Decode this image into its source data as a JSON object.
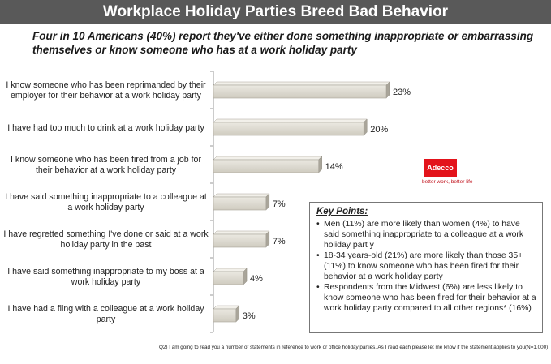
{
  "header": {
    "title": "Workplace Holiday Parties Breed Bad Behavior",
    "subtitle": "Four in 10 Americans (40%) report they've either done something inappropriate or embarrassing themselves or know someone who has at a work holiday party"
  },
  "chart_data": {
    "type": "bar",
    "orientation": "horizontal",
    "categories": [
      "I know someone who has  been reprimanded by their employer for their behavior at a work holiday party",
      "I have had too much to drink at a work holiday party",
      "I know someone who has been fired from a job for their behavior at a work holiday party",
      "I have said something inappropriate to a colleague at a work holiday party",
      "I have regretted something I've done or said at a work holiday party in the past",
      "I have said something inappropriate to my boss at a work holiday party",
      "I have had a fling with a colleague at a work holiday party"
    ],
    "values": [
      23,
      20,
      14,
      7,
      7,
      4,
      3
    ],
    "data_labels": [
      "23%",
      "20%",
      "14%",
      "7%",
      "7%",
      "4%",
      "3%"
    ],
    "xlim": [
      0,
      25
    ],
    "bar_color": "#d9d6cc",
    "grid": false,
    "legend": "none"
  },
  "brand": {
    "logo_text": "Adecco",
    "tagline": "better work, better life",
    "color": "#e3131b"
  },
  "key_points": {
    "title": "Key Points:",
    "bullet": "•",
    "items": [
      "Men (11%) are more likely than women (4%) to have said something inappropriate to a colleague at a work holiday part y",
      "18-34 years-old (21%) are more likely than those 35+ (11%) to know someone who has been fired for their behavior at a work holiday party",
      "Respondents from the Midwest (6%) are less likely to know someone who has been fired for their behavior at a work holiday party compared to all other regions* (16%)"
    ]
  },
  "footnote": "Q2) I am going to read you a number of statements in reference to work or office holiday parties. As I read each please let me know if the statement applies to you(N=1,000)"
}
